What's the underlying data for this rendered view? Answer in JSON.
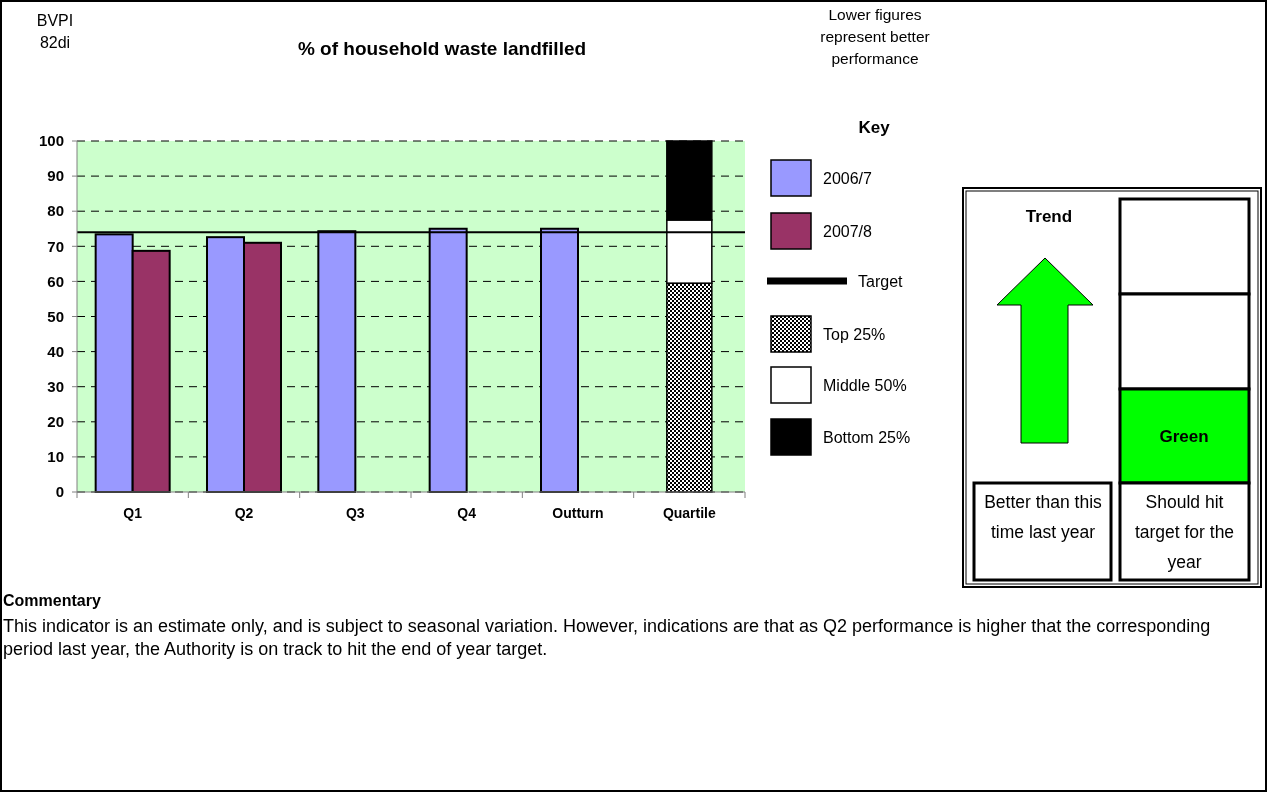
{
  "chart_data": {
    "type": "bar",
    "title": "% of household waste landfilled",
    "legend_title": "Key",
    "categories": [
      "Q1",
      "Q2",
      "Q3",
      "Q4",
      "Outturn",
      "Quartile"
    ],
    "series": [
      {
        "name": "2006/7",
        "color": "#9999ff",
        "values": [
          73.4,
          72.6,
          74.3,
          75,
          75,
          null
        ]
      },
      {
        "name": "2007/8",
        "color": "#993366",
        "values": [
          68.7,
          71,
          null,
          null,
          null,
          null
        ]
      },
      {
        "name": "Top 25%",
        "color": "#000000",
        "values": [
          null,
          null,
          null,
          null,
          null,
          59.5
        ],
        "base": [
          null,
          null,
          null,
          null,
          null,
          0
        ]
      },
      {
        "name": "Middle 50%",
        "color": "#ffffff",
        "values": [
          null,
          null,
          null,
          null,
          null,
          18
        ],
        "base": [
          null,
          null,
          null,
          null,
          null,
          59.5
        ]
      },
      {
        "name": "Bottom 25%",
        "color": "#000000",
        "values": [
          null,
          null,
          null,
          null,
          null,
          22.5
        ],
        "base": [
          null,
          null,
          null,
          null,
          null,
          77.5
        ]
      }
    ],
    "ylim": [
      0,
      100
    ],
    "yticks": [
      0,
      10,
      20,
      30,
      40,
      50,
      60,
      70,
      80,
      90,
      100
    ],
    "grid": "y",
    "legend": "right",
    "ref_lines": [
      {
        "axis": "y",
        "value": 74,
        "label": "Target",
        "color": "#000000"
      }
    ],
    "annotations": [
      "BVPI 82di",
      "Lower figures represent better performance",
      "Commentary",
      "This indicator is an estimate only, and is subject to seasonal variation.  However, indications are that as Q2 performance is higher that the corresponding period last year, the Authority is on track to hit the end of year target.",
      "Trend",
      "Green",
      "Better than this time last year",
      "Should hit target for the year"
    ]
  }
}
